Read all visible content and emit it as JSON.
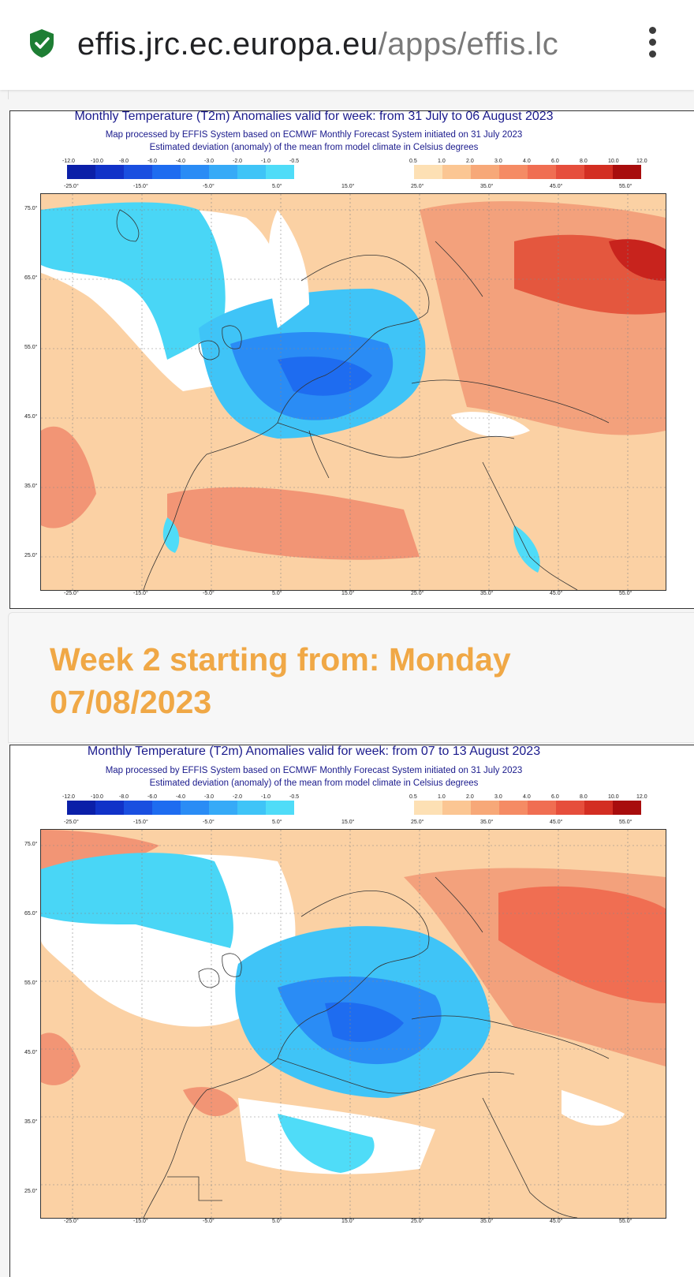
{
  "browser": {
    "url_domain": "effis.jrc.ec.europa.eu",
    "url_path": "/apps/effis.lc",
    "secure_icon": "shield-check-icon",
    "menu_icon": "vertical-dots-icon"
  },
  "maps": [
    {
      "title": "Monthly Temperature (T2m) Anomalies valid for week: from 31 July to 06 August 2023",
      "subtitle1": "Map processed by EFFIS System based on ECMWF Monthly Forecast System initiated on 31 July 2023",
      "subtitle2": "Estimated deviation (anomaly) of the mean from model climate in Celsius degrees"
    },
    {
      "title": "Monthly Temperature (T2m) Anomalies valid for week: from 07 to 13 August 2023",
      "subtitle1": "Map processed by EFFIS System based on ECMWF Monthly Forecast System initiated on 31 July 2023",
      "subtitle2": "Estimated deviation (anomaly) of the mean from model climate in Celsius degrees"
    }
  ],
  "legend": {
    "cold_labels": [
      "-12.0",
      "-10.0",
      "-8.0",
      "-6.0",
      "-4.0",
      "-3.0",
      "-2.0",
      "-1.0",
      "-0.5"
    ],
    "cold_colors": [
      "#0b1fa8",
      "#1132c8",
      "#1a4fe0",
      "#1e6cf0",
      "#2a8cf5",
      "#36aaf7",
      "#3fc4f7",
      "#4fdcf8"
    ],
    "warm_labels": [
      "0.5",
      "1.0",
      "2.0",
      "3.0",
      "4.0",
      "6.0",
      "8.0",
      "10.0",
      "12.0"
    ],
    "warm_colors": [
      "#fde0b4",
      "#fbc693",
      "#f7a878",
      "#f58b64",
      "#f06e52",
      "#e64e3c",
      "#d32e22",
      "#a80d0d"
    ]
  },
  "axes": {
    "lon_labels": [
      "-25.0°",
      "-15.0°",
      "-5.0°",
      "5.0°",
      "15.0°",
      "25.0°",
      "35.0°",
      "45.0°",
      "55.0°"
    ],
    "lat_labels": [
      "75.0°",
      "65.0°",
      "55.0°",
      "45.0°",
      "35.0°",
      "25.0°"
    ]
  },
  "week2": {
    "heading": "Week 2 starting from: Monday 07/08/2023"
  }
}
